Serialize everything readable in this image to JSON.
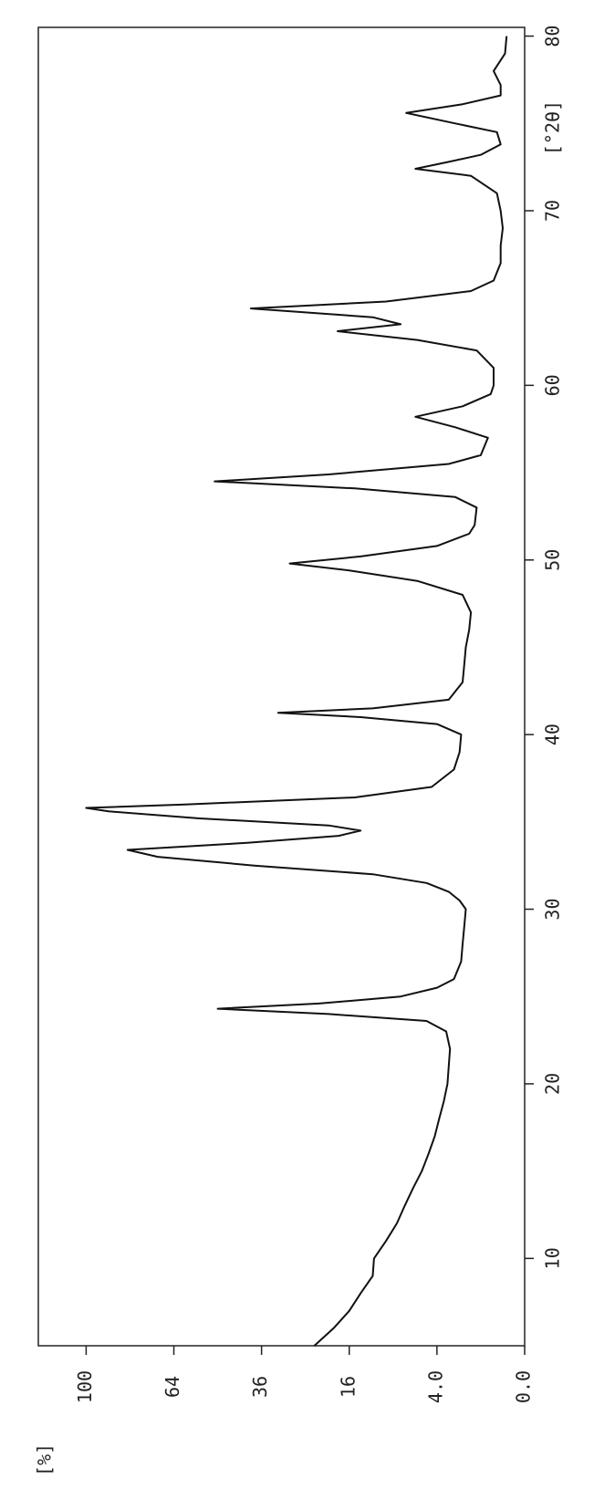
{
  "chart_data": {
    "type": "line",
    "x_label": "[°2θ]",
    "y_label": "[%]",
    "x": [
      5,
      6,
      7,
      8,
      9,
      10,
      11,
      12,
      13,
      14,
      15,
      16,
      17,
      18,
      19,
      20,
      21,
      22,
      23,
      23.6,
      24.0,
      24.3,
      24.6,
      25.0,
      25.5,
      26,
      27,
      28,
      29,
      30,
      30.5,
      31,
      31.5,
      32,
      32.5,
      33,
      33.4,
      33.8,
      34.2,
      34.5,
      34.8,
      35.2,
      35.6,
      35.8,
      36.0,
      36.4,
      37,
      38,
      39,
      40,
      40.6,
      41.0,
      41.25,
      41.5,
      42,
      43,
      44,
      45,
      46,
      47,
      48,
      48.8,
      49.4,
      49.8,
      50.2,
      50.8,
      51.5,
      52,
      53,
      53.6,
      54.1,
      54.5,
      54.9,
      55.5,
      56,
      57,
      57.6,
      58.2,
      58.8,
      59.5,
      60,
      61,
      62,
      62.6,
      63.1,
      63.5,
      63.9,
      64.4,
      64.8,
      65.4,
      66,
      67,
      68,
      69,
      70,
      71,
      72,
      72.4,
      72.8,
      73.2,
      73.8,
      74.5,
      75,
      75.6,
      76.1,
      76.6,
      77.2,
      78,
      79,
      80
    ],
    "series": [
      {
        "color": "#111111",
        "values": [
          23,
          19,
          16,
          14,
          12,
          11.8,
          10,
          8.5,
          7.5,
          6.5,
          5.5,
          4.8,
          4.2,
          3.8,
          3.4,
          3.1,
          3.0,
          2.9,
          3.2,
          5,
          20,
          49,
          22,
          8,
          4,
          2.6,
          2.1,
          2.0,
          1.9,
          1.8,
          2.2,
          3,
          5,
          12,
          38,
          70,
          82,
          40,
          18,
          14,
          20,
          55,
          90,
          100,
          60,
          15,
          4.5,
          2.6,
          2.2,
          2.1,
          4,
          14,
          31.6,
          12,
          3,
          2.0,
          1.9,
          1.8,
          1.6,
          1.5,
          2.0,
          6,
          16,
          28.7,
          14,
          4,
          1.6,
          1.3,
          1.2,
          2.5,
          15,
          50,
          20,
          3,
          1.0,
          0.7,
          2.5,
          6.2,
          2.0,
          0.6,
          0.5,
          0.5,
          1.2,
          6,
          18.2,
          8,
          12,
          39,
          10,
          1.5,
          0.5,
          0.3,
          0.3,
          0.25,
          0.3,
          0.4,
          1.5,
          6.2,
          3.0,
          1.0,
          0.3,
          0.4,
          2.5,
          7.3,
          2.0,
          0.3,
          0.3,
          0.5,
          0.2,
          0.17
        ]
      }
    ],
    "xlim": [
      5,
      80.5
    ],
    "xticks": [
      10,
      20,
      30,
      40,
      50,
      60,
      70,
      80
    ],
    "ylim": [
      0,
      123
    ],
    "y_scale": "sqrt",
    "yticks": [
      {
        "value": 0,
        "label": "0.0"
      },
      {
        "value": 4,
        "label": "4.0"
      },
      16,
      36,
      64,
      100
    ]
  }
}
